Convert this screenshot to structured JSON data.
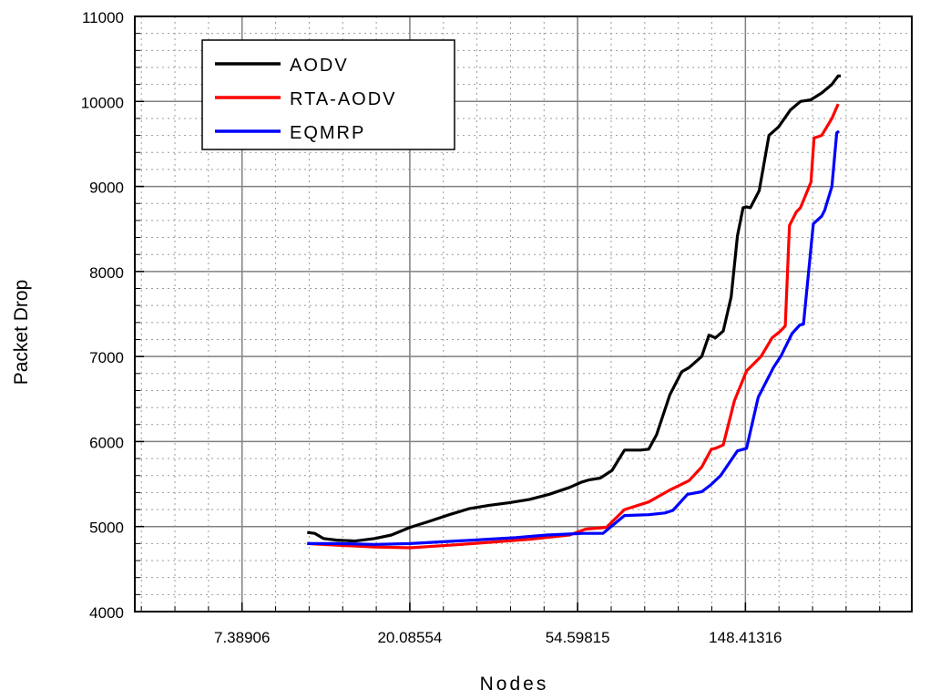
{
  "chart_data": {
    "type": "line",
    "title": "",
    "xlabel": "Nodes",
    "ylabel": "Packet Drop",
    "x_scale": "log",
    "xlim": [
      3.9,
      400
    ],
    "ylim": [
      4000,
      11000
    ],
    "x_ticks": [
      7.38906,
      20.08554,
      54.59815,
      148.41316
    ],
    "x_tick_labels": [
      "7.38906",
      "20.08554",
      "54.59815",
      "148.41316"
    ],
    "y_ticks": [
      4000,
      5000,
      6000,
      7000,
      8000,
      9000,
      10000,
      11000
    ],
    "y_tick_labels": [
      "4000",
      "5000",
      "6000",
      "7000",
      "8000",
      "9000",
      "10000",
      "11000"
    ],
    "grid": true,
    "legend_position": "top-left",
    "series": [
      {
        "name": "AODV",
        "color": "#000000",
        "x": [
          10.9,
          11.4,
          12.0,
          13.0,
          14.5,
          16.3,
          18.0,
          20.1,
          22.5,
          25.4,
          28.6,
          32.2,
          36.3,
          41.0,
          46.1,
          52.0,
          55.7,
          58.6,
          62.5,
          67.0,
          72.2,
          79.5,
          83.4,
          87.4,
          94.6,
          101.5,
          106.1,
          114.4,
          119.4,
          124.2,
          130.0,
          136.3,
          141.5,
          146.4,
          149.4,
          152.9,
          161.1,
          170.8,
          180.8,
          194.1,
          206.1,
          219.3,
          233.8,
          248.5,
          258.0,
          262.1
        ],
        "y": [
          4930,
          4920,
          4860,
          4840,
          4830,
          4860,
          4900,
          4990,
          5060,
          5140,
          5210,
          5250,
          5280,
          5320,
          5380,
          5460,
          5520,
          5550,
          5570,
          5660,
          5900,
          5900,
          5910,
          6080,
          6550,
          6820,
          6870,
          7000,
          7250,
          7220,
          7300,
          7700,
          8420,
          8750,
          8760,
          8750,
          8950,
          9600,
          9700,
          9900,
          10000,
          10020,
          10100,
          10200,
          10300,
          10300
        ]
      },
      {
        "name": "RTA-AODV",
        "color": "#ff0000",
        "x": [
          10.9,
          13.0,
          16.3,
          20.1,
          25.4,
          29.2,
          41.0,
          52.0,
          57.3,
          64.8,
          72.2,
          83.4,
          94.6,
          106.1,
          114.4,
          121.2,
          124.2,
          130.0,
          139.0,
          149.4,
          162.9,
          174.0,
          182.9,
          188.2,
          192.9,
          201.0,
          206.1,
          219.3,
          223.4,
          233.8,
          248.5,
          258.0
        ],
        "y": [
          4800,
          4780,
          4760,
          4750,
          4780,
          4800,
          4850,
          4900,
          4970,
          4990,
          5200,
          5290,
          5430,
          5540,
          5700,
          5910,
          5920,
          5960,
          6480,
          6830,
          7000,
          7220,
          7300,
          7360,
          8540,
          8700,
          8750,
          9050,
          9570,
          9600,
          9800,
          9970
        ]
      },
      {
        "name": "EQMRP",
        "color": "#0000ff",
        "x": [
          10.9,
          13.0,
          16.3,
          20.1,
          29.2,
          37.8,
          45.4,
          56.2,
          63.5,
          66.3,
          72.2,
          83.4,
          91.8,
          96.3,
          105.1,
          114.4,
          120.7,
          128.1,
          141.5,
          149.4,
          160.2,
          175.4,
          183.6,
          195.9,
          205.3,
          209.8,
          222.4,
          233.8,
          238.1,
          248.5,
          255.7,
          259.3
        ],
        "y": [
          4800,
          4800,
          4790,
          4800,
          4840,
          4870,
          4900,
          4920,
          4920,
          4990,
          5130,
          5140,
          5160,
          5190,
          5380,
          5410,
          5490,
          5600,
          5890,
          5920,
          6520,
          6870,
          7010,
          7270,
          7370,
          7380,
          8560,
          8650,
          8720,
          9000,
          9630,
          9650
        ]
      }
    ]
  }
}
